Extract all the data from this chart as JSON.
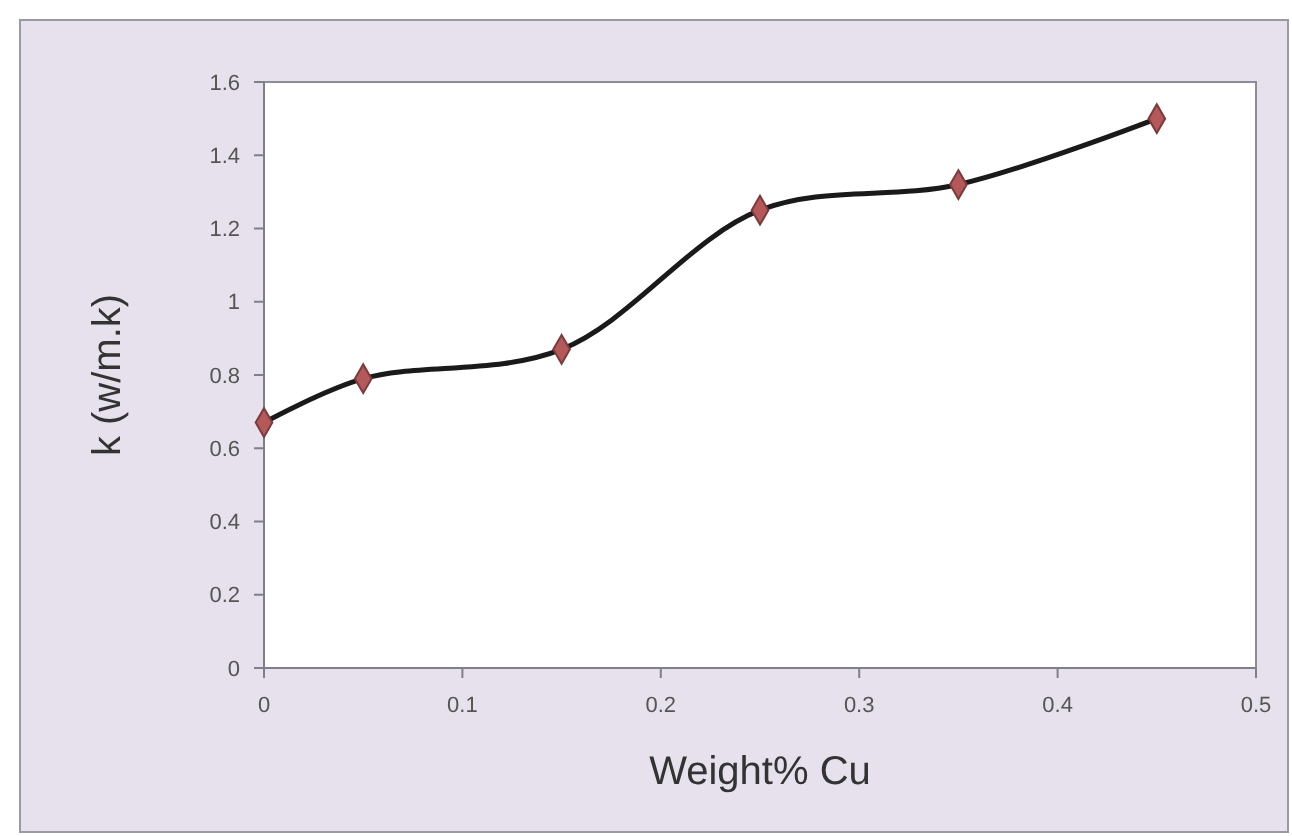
{
  "chart_data": {
    "type": "line",
    "xlabel": "Weight% Cu",
    "ylabel": "k (w/m.k)",
    "x": [
      0,
      0.05,
      0.15,
      0.25,
      0.35,
      0.45
    ],
    "series": [
      {
        "color": "#1a1a1a",
        "values": [
          0.67,
          0.79,
          0.87,
          1.25,
          1.32,
          1.5
        ]
      }
    ],
    "xlim": [
      0,
      0.5
    ],
    "xticks": [
      0,
      0.1,
      0.2,
      0.3,
      0.4,
      0.5
    ],
    "ylim": [
      0,
      1.6
    ],
    "yticks": [
      0,
      0.2,
      0.4,
      0.6,
      0.8,
      1,
      1.2,
      1.4,
      1.6
    ],
    "grid": false,
    "marker": "diamond",
    "line_style": "solid"
  }
}
